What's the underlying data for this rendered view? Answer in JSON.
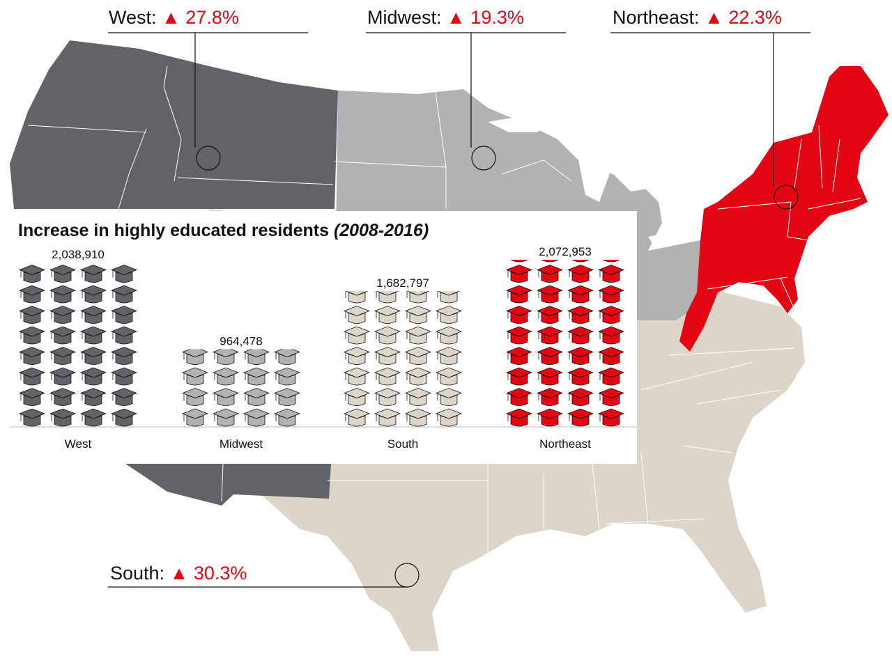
{
  "colors": {
    "west": "#626366",
    "midwest": "#b1b2b4",
    "south": "#dbd6c9",
    "northeast": "#e30613",
    "accent": "#e30613",
    "state_border": "#ffffff"
  },
  "callouts": [
    {
      "region": "West",
      "label": "West:",
      "arrow": "▲",
      "pct": "27.8%"
    },
    {
      "region": "Midwest",
      "label": "Midwest:",
      "arrow": "▲",
      "pct": "19.3%"
    },
    {
      "region": "Northeast",
      "label": "Northeast:",
      "arrow": "▲",
      "pct": "22.3%"
    },
    {
      "region": "South",
      "label": "South:",
      "arrow": "▲",
      "pct": "30.3%"
    }
  ],
  "chart_data": {
    "type": "bar",
    "title": "Increase in highly educated residents",
    "title_years": "(2008-2016)",
    "categories": [
      "West",
      "Midwest",
      "South",
      "Northeast"
    ],
    "values": [
      2038910,
      964478,
      1682797,
      2072953
    ],
    "value_labels": [
      "2,038,910",
      "964,478",
      "1,682,797",
      "2,072,953"
    ],
    "pictograph_icon": "graduation-cap-icon",
    "columns_per_bar": 4,
    "series_colors": [
      "#626366",
      "#b1b2b4",
      "#dbd6c9",
      "#e30613"
    ],
    "ylim": [
      0,
      2072953
    ]
  }
}
